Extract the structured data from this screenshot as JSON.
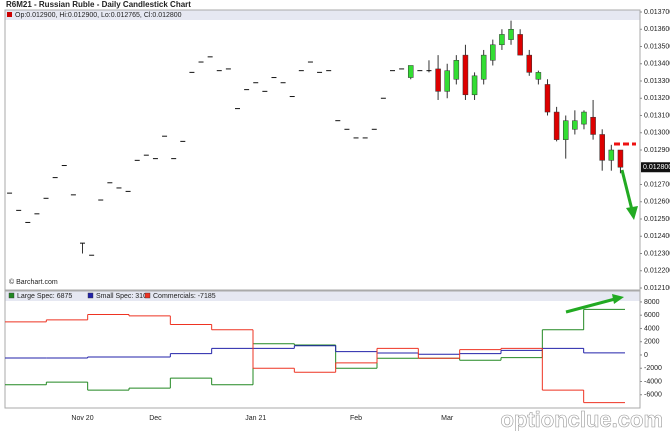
{
  "chart_data": [
    {
      "type": "candlestick",
      "title": "R6M21 - Russian Ruble - Daily Candlestick Chart",
      "subtitle": "Op:0.012900, Hi:0.012900, Lo:0.012765, Cl:0.012800",
      "source": "© Barchart.com",
      "categories": [
        null,
        null,
        null,
        null,
        null,
        null,
        null,
        null,
        "Nov 20",
        null,
        null,
        null,
        null,
        null,
        null,
        null,
        "Dec",
        null,
        null,
        null,
        null,
        null,
        null,
        null,
        null,
        null,
        null,
        "Jan 21",
        null,
        null,
        null,
        null,
        null,
        null,
        null,
        null,
        null,
        null,
        "Feb",
        null,
        null,
        null,
        null,
        null,
        null,
        null,
        null,
        null,
        "Mar",
        null,
        null,
        null,
        null,
        null,
        null,
        null,
        null,
        null,
        null,
        null,
        null,
        null,
        null,
        null,
        null,
        null,
        null,
        null
      ],
      "open": [
        0.01265,
        0.01255,
        0.01248,
        0.01253,
        0.01262,
        0.01274,
        0.01281,
        0.01264,
        0.01236,
        0.01229,
        0.01261,
        0.01271,
        0.01268,
        0.01266,
        0.01284,
        0.01287,
        0.01285,
        0.01298,
        0.01285,
        0.01295,
        0.01335,
        0.01341,
        0.01344,
        0.01336,
        0.01337,
        0.01314,
        0.01325,
        0.01329,
        0.01324,
        0.01332,
        0.01329,
        0.01321,
        0.01336,
        0.01341,
        0.01335,
        0.01336,
        0.01307,
        0.01302,
        0.01297,
        0.01297,
        0.01302,
        0.0132,
        0.01336,
        0.01337,
        0.01332,
        0.01336,
        0.01336,
        0.01337,
        0.01324,
        0.01331,
        0.01345,
        0.01322,
        0.01331,
        0.01342,
        0.01351,
        0.01354,
        0.01357,
        0.01345,
        0.01331,
        0.01328,
        0.01312,
        0.01296,
        0.01302,
        0.01305,
        0.01309,
        0.01299,
        0.01284,
        0.0129
      ],
      "high": [
        0.01265,
        0.01255,
        0.01248,
        0.01253,
        0.01262,
        0.01274,
        0.01281,
        0.01264,
        0.01236,
        0.01229,
        0.01261,
        0.01271,
        0.01268,
        0.01266,
        0.01284,
        0.01287,
        0.01285,
        0.01298,
        0.01285,
        0.01295,
        0.01335,
        0.01341,
        0.01344,
        0.01336,
        0.01337,
        0.01314,
        0.01325,
        0.01329,
        0.01324,
        0.01332,
        0.01329,
        0.01321,
        0.01336,
        0.01341,
        0.01335,
        0.01336,
        0.01307,
        0.01302,
        0.01297,
        0.01297,
        0.01302,
        0.0132,
        0.01336,
        0.01337,
        0.01339,
        0.01336,
        0.01342,
        0.01345,
        0.0134,
        0.01345,
        0.01351,
        0.01335,
        0.01348,
        0.01354,
        0.0136,
        0.01365,
        0.0136,
        0.01348,
        0.01336,
        0.01331,
        0.01315,
        0.0131,
        0.01313,
        0.01313,
        0.01319,
        0.01302,
        0.01293,
        0.0129
      ],
      "low": [
        0.01265,
        0.01255,
        0.01248,
        0.01253,
        0.01262,
        0.01274,
        0.01281,
        0.01264,
        0.0123,
        0.01229,
        0.01261,
        0.01271,
        0.01268,
        0.01266,
        0.01284,
        0.01287,
        0.01285,
        0.01298,
        0.01285,
        0.01295,
        0.01335,
        0.01341,
        0.01344,
        0.01336,
        0.01337,
        0.01314,
        0.01325,
        0.01329,
        0.01324,
        0.01332,
        0.01329,
        0.01321,
        0.01336,
        0.01341,
        0.01335,
        0.01336,
        0.01307,
        0.01302,
        0.01297,
        0.01297,
        0.01302,
        0.0132,
        0.01336,
        0.01337,
        0.01331,
        0.01336,
        0.01335,
        0.01319,
        0.0132,
        0.01328,
        0.01319,
        0.01319,
        0.01328,
        0.01339,
        0.01348,
        0.01351,
        0.01345,
        0.01333,
        0.01328,
        0.0131,
        0.01295,
        0.01285,
        0.01299,
        0.01302,
        0.01296,
        0.01278,
        0.01278,
        0.012765
      ],
      "close": [
        0.01265,
        0.01255,
        0.01248,
        0.01253,
        0.01262,
        0.01274,
        0.01281,
        0.01264,
        0.01236,
        0.01229,
        0.01261,
        0.01271,
        0.01268,
        0.01266,
        0.01284,
        0.01287,
        0.01285,
        0.01298,
        0.01285,
        0.01295,
        0.01335,
        0.01341,
        0.01344,
        0.01336,
        0.01337,
        0.01314,
        0.01325,
        0.01329,
        0.01324,
        0.01332,
        0.01329,
        0.01321,
        0.01336,
        0.01341,
        0.01335,
        0.01336,
        0.01307,
        0.01302,
        0.01297,
        0.01297,
        0.01302,
        0.0132,
        0.01336,
        0.01337,
        0.01339,
        0.01336,
        0.01336,
        0.01324,
        0.01336,
        0.01342,
        0.01322,
        0.01333,
        0.01345,
        0.01351,
        0.01357,
        0.0136,
        0.01345,
        0.01335,
        0.01335,
        0.01312,
        0.01296,
        0.01307,
        0.01307,
        0.01312,
        0.01299,
        0.01284,
        0.0129,
        0.0128
      ],
      "up_color": "#33dd33",
      "down_color": "#dd0000",
      "ylim": [
        0.0121,
        0.0137
      ],
      "yticks": [
        {
          "value": 0.0137,
          "label": "0.013700"
        },
        {
          "value": 0.0136,
          "label": "0.013600"
        },
        {
          "value": 0.0135,
          "label": "0.013500"
        },
        {
          "value": 0.0134,
          "label": "0.013400"
        },
        {
          "value": 0.0133,
          "label": "0.013300"
        },
        {
          "value": 0.0132,
          "label": "0.013200"
        },
        {
          "value": 0.0131,
          "label": "0.013100"
        },
        {
          "value": 0.013,
          "label": "0.013000"
        },
        {
          "value": 0.0129,
          "label": "0.012900"
        },
        {
          "value": 0.0127,
          "label": "0.012700"
        },
        {
          "value": 0.0126,
          "label": "0.012600"
        },
        {
          "value": 0.0125,
          "label": "0.012500"
        },
        {
          "value": 0.0124,
          "label": "0.012400"
        },
        {
          "value": 0.0123,
          "label": "0.012300"
        },
        {
          "value": 0.0122,
          "label": "0.012200"
        },
        {
          "value": 0.0121,
          "label": "0.012100"
        }
      ],
      "last_label": {
        "value": 0.0128,
        "label": "0.012800"
      }
    },
    {
      "type": "step",
      "series": [
        {
          "name": "Large Spec: 6875",
          "color": "#228822",
          "values": [
            -4500,
            -4100,
            -5300,
            -5000,
            -3500,
            -4500,
            1700,
            1500,
            -2000,
            -500,
            -500,
            -800,
            -400,
            3800,
            6875
          ]
        },
        {
          "name": "Small Spec: 310",
          "color": "#2222aa",
          "values": [
            -450,
            -450,
            -300,
            -300,
            200,
            1000,
            1000,
            1400,
            500,
            300,
            100,
            200,
            700,
            1000,
            310
          ]
        },
        {
          "name": "Commercials: -7185",
          "color": "#ee3322",
          "values": [
            5000,
            5300,
            6100,
            5900,
            4600,
            3800,
            -2000,
            -2600,
            -1200,
            1000,
            -500,
            800,
            1000,
            -5300,
            -7185
          ]
        }
      ],
      "ylim": [
        -8000,
        9500
      ],
      "yticks": [
        8000,
        6000,
        4000,
        2000,
        0,
        -2000,
        -4000,
        -6000
      ]
    }
  ],
  "watermark": "optionclue.com"
}
